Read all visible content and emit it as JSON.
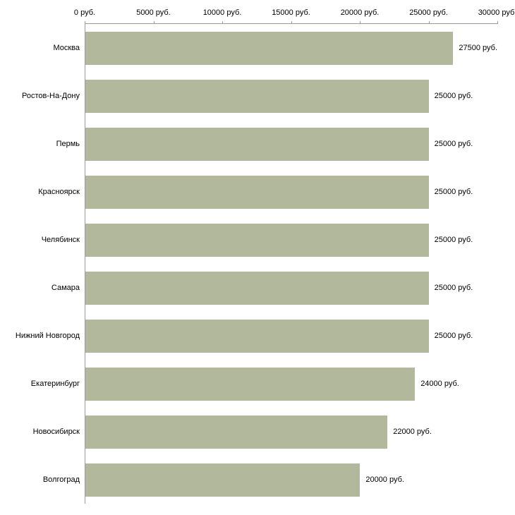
{
  "chart_data": {
    "type": "bar",
    "orientation": "horizontal",
    "title": "",
    "xlabel": "",
    "ylabel": "",
    "grid": false,
    "legend": "none",
    "unit": "руб.",
    "xlim": [
      0,
      30000
    ],
    "x_ticks": [
      "0 руб.",
      "5000 руб.",
      "10000 руб.",
      "15000 руб.",
      "20000 руб.",
      "25000 руб.",
      "30000 руб."
    ],
    "categories": [
      "Москва",
      "Ростов-На-Дону",
      "Пермь",
      "Красноярск",
      "Челябинск",
      "Самара",
      "Нижний Новгород",
      "Екатеринбург",
      "Новосибирск",
      "Волгоград"
    ],
    "values": [
      27500,
      25000,
      25000,
      25000,
      25000,
      25000,
      25000,
      24000,
      22000,
      20000
    ],
    "value_labels": [
      "27500 руб.",
      "25000 руб.",
      "25000 руб.",
      "25000 руб.",
      "25000 руб.",
      "25000 руб.",
      "25000 руб.",
      "24000 руб.",
      "22000 руб.",
      "20000 руб."
    ],
    "bar_color": "#b1b89b",
    "axis_color": "#9b9b9b",
    "text_color": "#000000"
  }
}
